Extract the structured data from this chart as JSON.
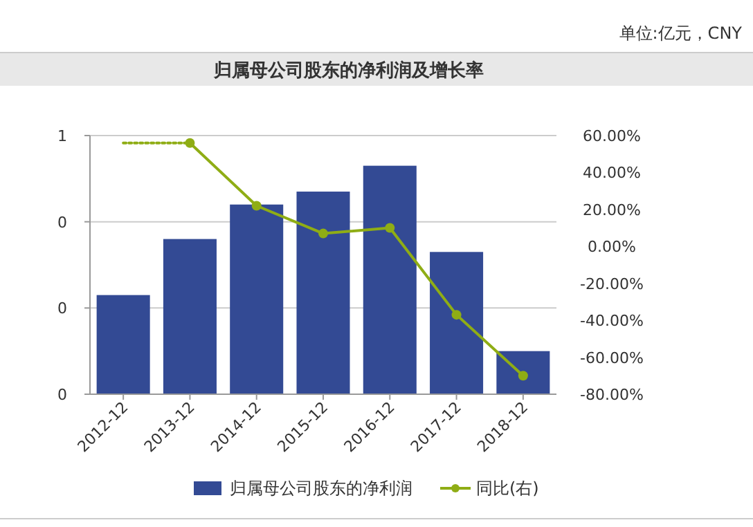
{
  "chart_data": {
    "type": "bar",
    "title": "归属母公司股东的净利润及增长率",
    "annotations": [
      "单位:亿元，CNY"
    ],
    "categories": [
      "2012-12",
      "2013-12",
      "2014-12",
      "2015-12",
      "2016-12",
      "2017-12",
      "2018-12"
    ],
    "series": [
      {
        "name": "归属母公司股东的净利润",
        "color": "#334a94",
        "values": [
          0.23,
          0.36,
          0.44,
          0.47,
          0.53,
          0.33,
          0.1
        ]
      },
      {
        "name": "同比(右)",
        "type": "line",
        "axis": "y2",
        "color": "#8fad15",
        "marker": "circle",
        "line_style": "solid",
        "values": [
          null,
          56,
          22,
          7,
          10,
          -37,
          -70
        ]
      },
      {
        "type": "line",
        "axis": "y2",
        "color": "#8fad15",
        "line_style": "dotted",
        "values": [
          56,
          56,
          null,
          null,
          null,
          null,
          null
        ]
      }
    ],
    "ylim": [
      0,
      0.6
    ],
    "yticks": [
      {
        "value": 0,
        "label": "0"
      },
      {
        "value": 0.2,
        "label": "0"
      },
      {
        "value": 0.4,
        "label": "0"
      },
      {
        "value": 0.6,
        "label": "1"
      }
    ],
    "y2lim": [
      -80,
      60
    ],
    "y2ticks": [
      {
        "value": -80,
        "label": "-80.00%"
      },
      {
        "value": -60,
        "label": "-60.00%"
      },
      {
        "value": -40,
        "label": "-40.00%"
      },
      {
        "value": -20,
        "label": "-20.00%"
      },
      {
        "value": 0,
        "label": "0.00%"
      },
      {
        "value": 20,
        "label": "20.00%"
      },
      {
        "value": 40,
        "label": "40.00%"
      },
      {
        "value": 60,
        "label": "60.00%"
      }
    ],
    "grid": "y",
    "legend": "bottom"
  }
}
